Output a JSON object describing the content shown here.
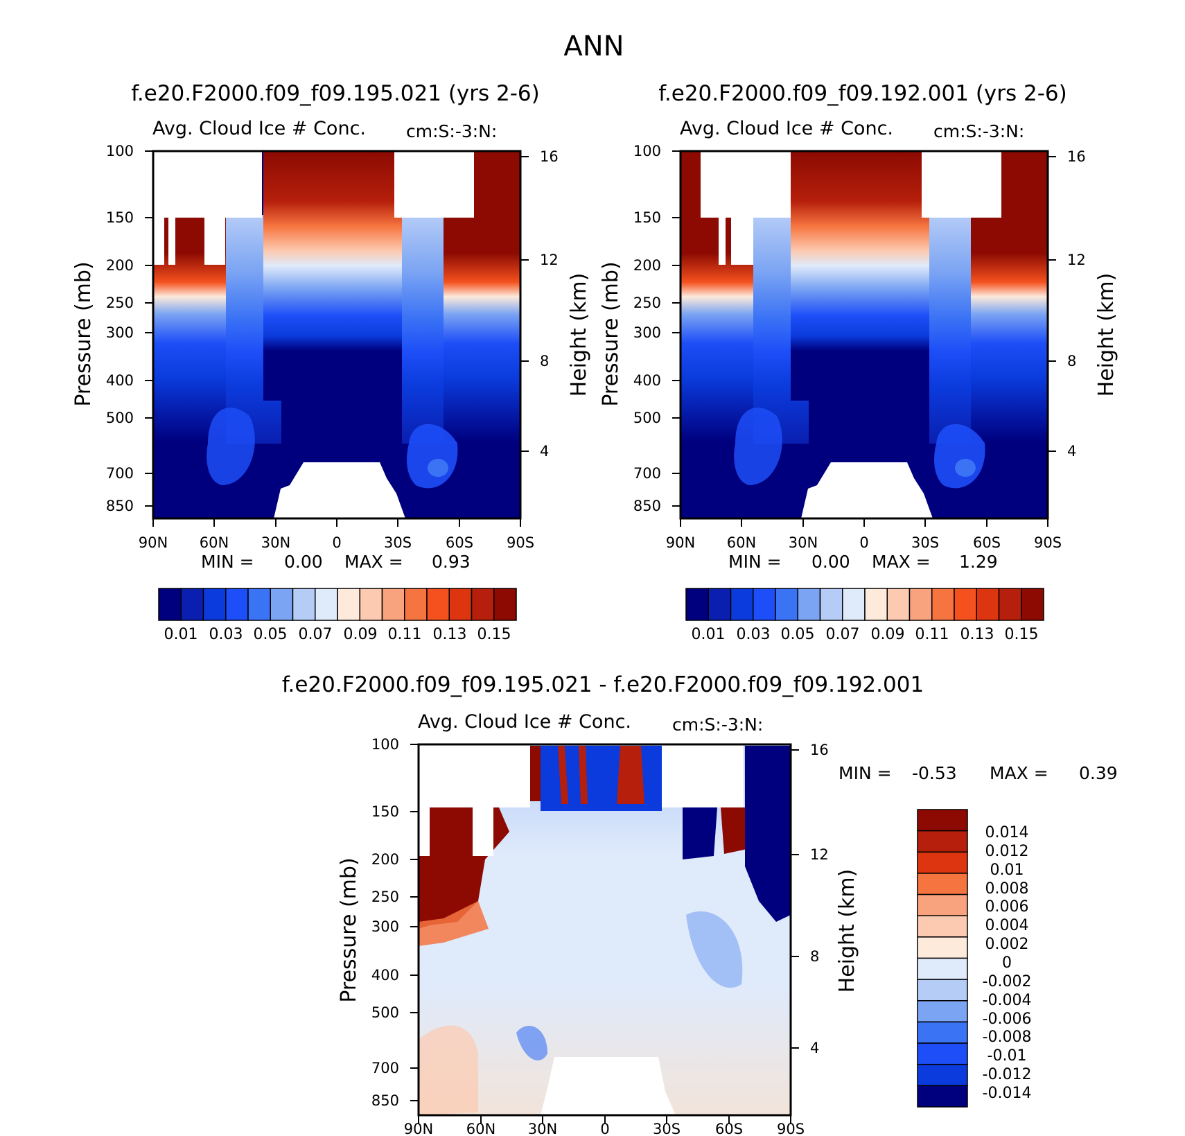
{
  "chart_data": {
    "type": "heatmap",
    "title": "ANN",
    "panels": [
      {
        "id": "top-left",
        "run_title": "f.e20.F2000.f09_f09.195.021 (yrs 2-6)",
        "variable": "Avg. Cloud Ice # Conc.",
        "units": "cm:S:-3:N:",
        "ylabel": "Pressure (mb)",
        "y2label": "Height (km)",
        "x_ticks": [
          "90N",
          "60N",
          "30N",
          "0",
          "30S",
          "60S",
          "90S"
        ],
        "y_ticks": [
          "100",
          "150",
          "200",
          "250",
          "300",
          "400",
          "500",
          "700",
          "850"
        ],
        "y2_ticks": [
          "16",
          "12",
          "8",
          "4"
        ],
        "min_label": "MIN =",
        "min_value": "0.00",
        "max_label": "MAX =",
        "max_value": "0.93",
        "colorbar_labels": [
          "0.01",
          "0.03",
          "0.05",
          "0.07",
          "0.09",
          "0.11",
          "0.13",
          "0.15"
        ],
        "palette": "abs"
      },
      {
        "id": "top-right",
        "run_title": "f.e20.F2000.f09_f09.192.001 (yrs 2-6)",
        "variable": "Avg. Cloud Ice # Conc.",
        "units": "cm:S:-3:N:",
        "ylabel": "Pressure (mb)",
        "y2label": "Height (km)",
        "x_ticks": [
          "90N",
          "60N",
          "30N",
          "0",
          "30S",
          "60S",
          "90S"
        ],
        "y_ticks": [
          "100",
          "150",
          "200",
          "250",
          "300",
          "400",
          "500",
          "700",
          "850"
        ],
        "y2_ticks": [
          "16",
          "12",
          "8",
          "4"
        ],
        "min_label": "MIN =",
        "min_value": "0.00",
        "max_label": "MAX =",
        "max_value": "1.29",
        "colorbar_labels": [
          "0.01",
          "0.03",
          "0.05",
          "0.07",
          "0.09",
          "0.11",
          "0.13",
          "0.15"
        ],
        "palette": "abs"
      },
      {
        "id": "bottom-diff",
        "run_title": "f.e20.F2000.f09_f09.195.021 - f.e20.F2000.f09_f09.192.001",
        "variable": "Avg. Cloud Ice # Conc.",
        "units": "cm:S:-3:N:",
        "ylabel": "Pressure (mb)",
        "y2label": "Height (km)",
        "x_ticks": [
          "90N",
          "60N",
          "30N",
          "0",
          "30S",
          "60S",
          "90S"
        ],
        "y_ticks": [
          "100",
          "150",
          "200",
          "250",
          "300",
          "400",
          "500",
          "700",
          "850"
        ],
        "y2_ticks": [
          "16",
          "12",
          "8",
          "4"
        ],
        "min_label": "MIN =",
        "min_value": "-0.53",
        "max_label": "MAX =",
        "max_value": "0.39",
        "colorbar_labels": [
          "0.014",
          "0.012",
          "0.01",
          "0.008",
          "0.006",
          "0.004",
          "0.002",
          "0",
          "-0.002",
          "-0.004",
          "-0.006",
          "-0.008",
          "-0.01",
          "-0.012",
          "-0.014"
        ],
        "palette": "diff"
      }
    ],
    "palettes": {
      "abs": [
        "#00007f",
        "#0a1fb0",
        "#0b3bdc",
        "#1d4ef7",
        "#3b73f5",
        "#7ba4f3",
        "#b5ccf7",
        "#dfeafb",
        "#fdeadb",
        "#fccab0",
        "#f8a27e",
        "#f6743f",
        "#f4511e",
        "#dc3510",
        "#b51f0b",
        "#8c0a02"
      ],
      "diff": [
        "#8c0a02",
        "#b51f0b",
        "#dc3510",
        "#f6743f",
        "#f8a27e",
        "#fccab0",
        "#fdeadb",
        "#dfeafb",
        "#b5ccf7",
        "#7ba4f3",
        "#3b73f5",
        "#1d4ef7",
        "#0b3bdc",
        "#00007f"
      ]
    }
  }
}
